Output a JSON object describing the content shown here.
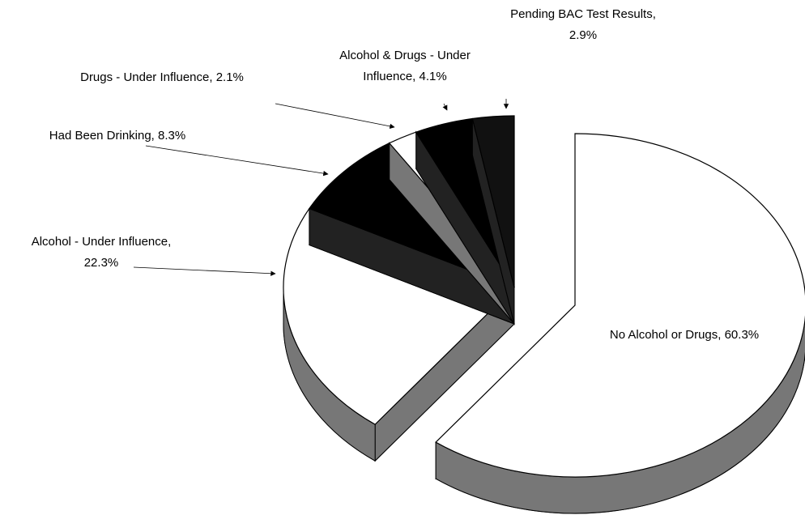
{
  "chart_data": {
    "type": "pie",
    "values": [
      60.3,
      22.3,
      8.3,
      2.1,
      4.1,
      2.9
    ],
    "value_labels": [
      [
        "No Alcohol or Drugs, 60.3%"
      ],
      [
        "Alcohol - Under Influence,",
        "22.3%"
      ],
      [
        "Had Been Drinking, 8.3%"
      ],
      [
        "Drugs - Under Influence, 2.1%"
      ],
      [
        "Alcohol & Drugs - Under",
        "Influence, 4.1%"
      ],
      [
        "Pending BAC Test Results,",
        "2.9%"
      ]
    ],
    "colors": [
      "#ffffff",
      "#ffffff",
      "#000000",
      "#ffffff",
      "#000000",
      "#111111"
    ],
    "exploded": [
      true,
      false,
      false,
      false,
      false,
      false
    ]
  }
}
